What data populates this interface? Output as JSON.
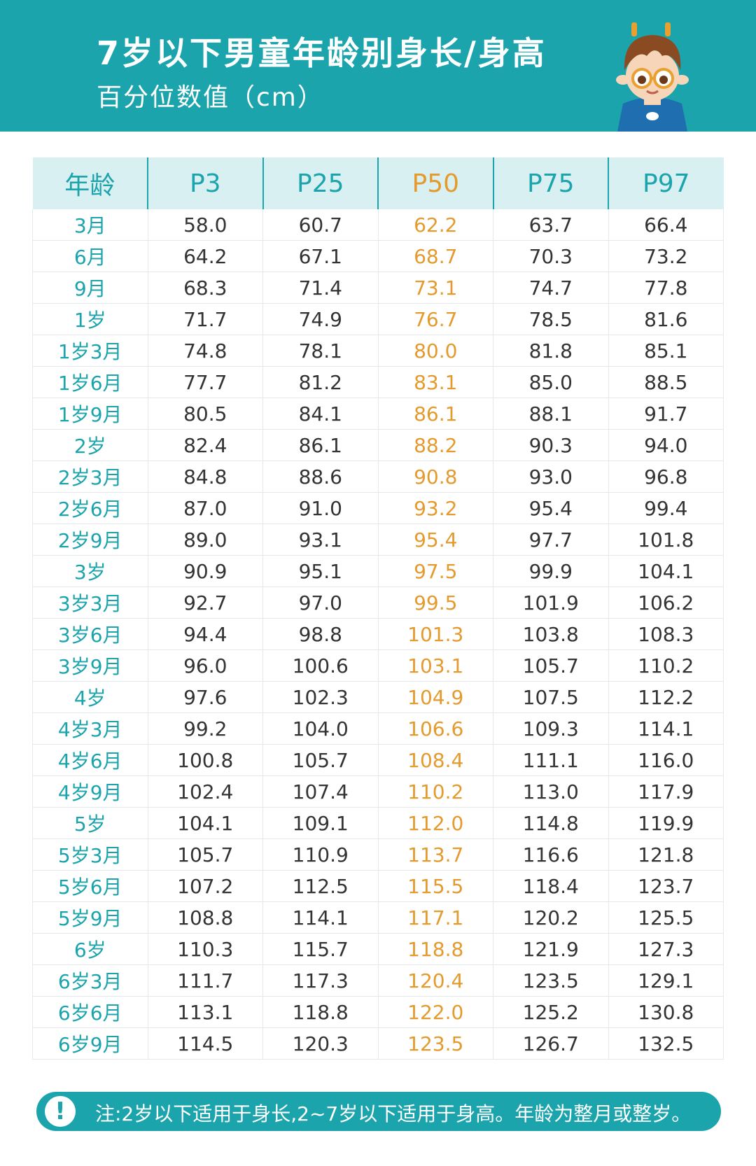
{
  "header": {
    "title": "7岁以下男童年龄别身长/身高",
    "subtitle": "百分位数值（cm）",
    "background_color": "#1ca4ad"
  },
  "mascot": {
    "icon": "boy-mascot-icon"
  },
  "table": {
    "columns": [
      "年龄",
      "P3",
      "P25",
      "P50",
      "P75",
      "P97"
    ],
    "highlight_color": "#e49a2d",
    "rows": [
      [
        "3月",
        "58.0",
        "60.7",
        "62.2",
        "63.7",
        "66.4"
      ],
      [
        "6月",
        "64.2",
        "67.1",
        "68.7",
        "70.3",
        "73.2"
      ],
      [
        "9月",
        "68.3",
        "71.4",
        "73.1",
        "74.7",
        "77.8"
      ],
      [
        "1岁",
        "71.7",
        "74.9",
        "76.7",
        "78.5",
        "81.6"
      ],
      [
        "1岁3月",
        "74.8",
        "78.1",
        "80.0",
        "81.8",
        "85.1"
      ],
      [
        "1岁6月",
        "77.7",
        "81.2",
        "83.1",
        "85.0",
        "88.5"
      ],
      [
        "1岁9月",
        "80.5",
        "84.1",
        "86.1",
        "88.1",
        "91.7"
      ],
      [
        "2岁",
        "82.4",
        "86.1",
        "88.2",
        "90.3",
        "94.0"
      ],
      [
        "2岁3月",
        "84.8",
        "88.6",
        "90.8",
        "93.0",
        "96.8"
      ],
      [
        "2岁6月",
        "87.0",
        "91.0",
        "93.2",
        "95.4",
        "99.4"
      ],
      [
        "2岁9月",
        "89.0",
        "93.1",
        "95.4",
        "97.7",
        "101.8"
      ],
      [
        "3岁",
        "90.9",
        "95.1",
        "97.5",
        "99.9",
        "104.1"
      ],
      [
        "3岁3月",
        "92.7",
        "97.0",
        "99.5",
        "101.9",
        "106.2"
      ],
      [
        "3岁6月",
        "94.4",
        "98.8",
        "101.3",
        "103.8",
        "108.3"
      ],
      [
        "3岁9月",
        "96.0",
        "100.6",
        "103.1",
        "105.7",
        "110.2"
      ],
      [
        "4岁",
        "97.6",
        "102.3",
        "104.9",
        "107.5",
        "112.2"
      ],
      [
        "4岁3月",
        "99.2",
        "104.0",
        "106.6",
        "109.3",
        "114.1"
      ],
      [
        "4岁6月",
        "100.8",
        "105.7",
        "108.4",
        "111.1",
        "116.0"
      ],
      [
        "4岁9月",
        "102.4",
        "107.4",
        "110.2",
        "113.0",
        "117.9"
      ],
      [
        "5岁",
        "104.1",
        "109.1",
        "112.0",
        "114.8",
        "119.9"
      ],
      [
        "5岁3月",
        "105.7",
        "110.9",
        "113.7",
        "116.6",
        "121.8"
      ],
      [
        "5岁6月",
        "107.2",
        "112.5",
        "115.5",
        "118.4",
        "123.7"
      ],
      [
        "5岁9月",
        "108.8",
        "114.1",
        "117.1",
        "120.2",
        "125.5"
      ],
      [
        "6岁",
        "110.3",
        "115.7",
        "118.8",
        "121.9",
        "127.3"
      ],
      [
        "6岁3月",
        "111.7",
        "117.3",
        "120.4",
        "123.5",
        "129.1"
      ],
      [
        "6岁6月",
        "113.1",
        "118.8",
        "122.0",
        "125.2",
        "130.8"
      ],
      [
        "6岁9月",
        "114.5",
        "120.3",
        "123.5",
        "126.7",
        "132.5"
      ]
    ]
  },
  "note": {
    "icon": "exclamation-icon",
    "icon_glyph": "!",
    "text": "注:2岁以下适用于身长,2~7岁以下适用于身高。年龄为整月或整岁。"
  }
}
